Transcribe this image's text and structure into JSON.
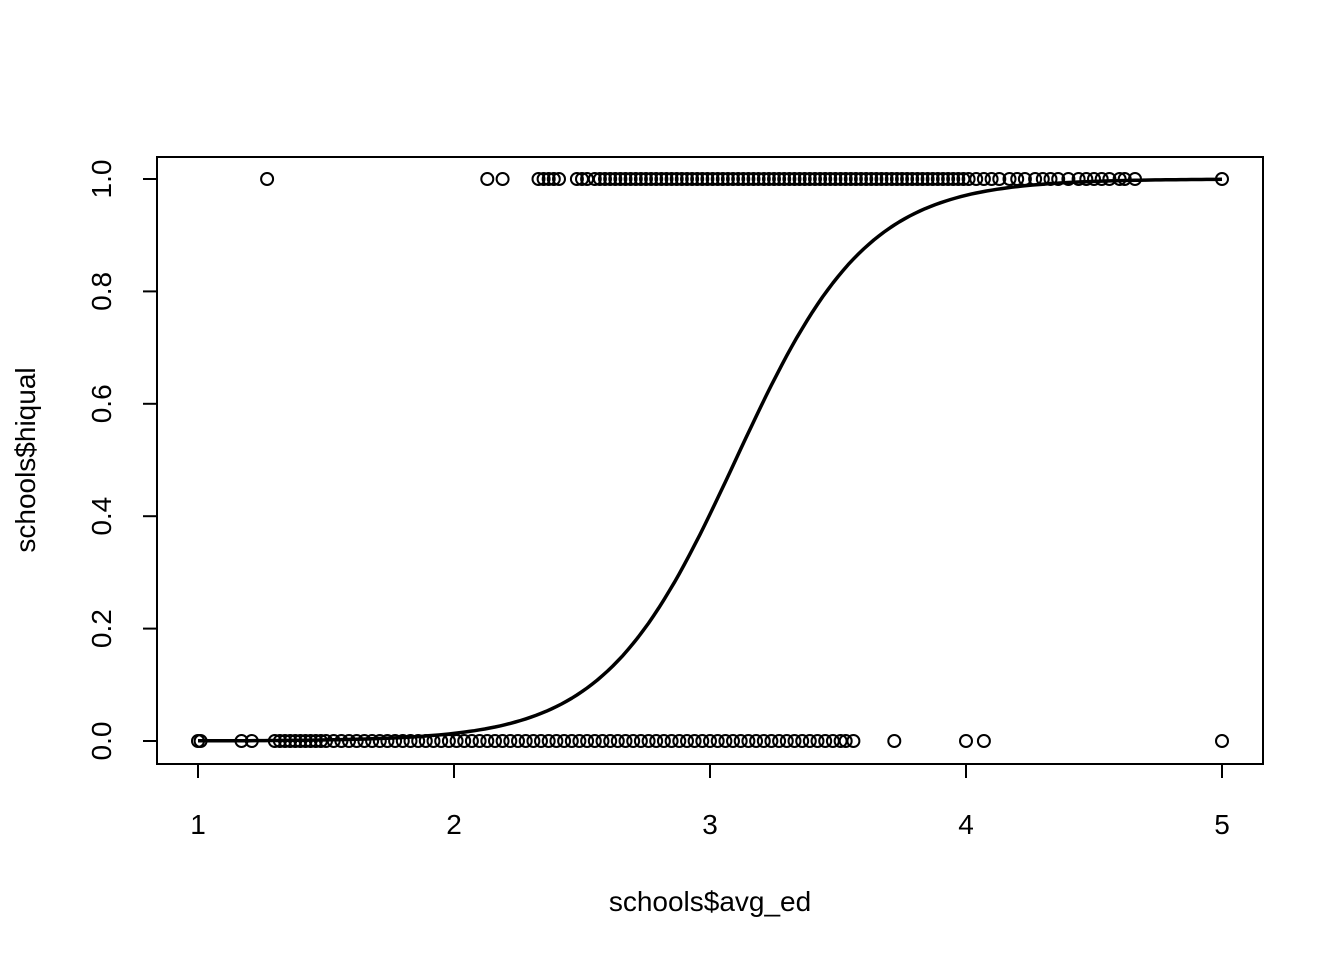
{
  "chart_data": {
    "type": "scatter",
    "xlabel": "schools$avg_ed",
    "ylabel": "schools$hiqual",
    "xlim": [
      1,
      5
    ],
    "ylim": [
      0,
      1
    ],
    "x_ticks": [
      1,
      2,
      3,
      4,
      5
    ],
    "x_tick_labels": [
      "1",
      "2",
      "3",
      "4",
      "5"
    ],
    "y_ticks": [
      0,
      0.2,
      0.4,
      0.6,
      0.8,
      1.0
    ],
    "y_tick_labels": [
      "0.0",
      "0.2",
      "0.4",
      "0.6",
      "0.8",
      "1.0"
    ],
    "grid": false,
    "series": [
      {
        "y": 1,
        "x": [
          1.27,
          2.13,
          2.19,
          2.33,
          2.35,
          2.37,
          2.39,
          2.41,
          2.48,
          2.5,
          2.52,
          2.55,
          2.57,
          2.59,
          2.61,
          2.63,
          2.65,
          2.67,
          2.69,
          2.71,
          2.73,
          2.75,
          2.77,
          2.79,
          2.81,
          2.83,
          2.85,
          2.87,
          2.89,
          2.91,
          2.93,
          2.95,
          2.97,
          2.99,
          3.01,
          3.03,
          3.05,
          3.07,
          3.09,
          3.11,
          3.13,
          3.15,
          3.17,
          3.19,
          3.21,
          3.23,
          3.25,
          3.27,
          3.29,
          3.31,
          3.33,
          3.35,
          3.37,
          3.39,
          3.41,
          3.43,
          3.45,
          3.47,
          3.49,
          3.51,
          3.53,
          3.55,
          3.57,
          3.59,
          3.61,
          3.63,
          3.65,
          3.67,
          3.69,
          3.71,
          3.73,
          3.75,
          3.77,
          3.79,
          3.81,
          3.83,
          3.85,
          3.87,
          3.89,
          3.91,
          3.93,
          3.95,
          3.97,
          3.99,
          4.01,
          4.04,
          4.07,
          4.1,
          4.13,
          4.17,
          4.2,
          4.23,
          4.27,
          4.3,
          4.33,
          4.36,
          4.4,
          4.44,
          4.47,
          4.5,
          4.53,
          4.56,
          4.6,
          4.62,
          4.66,
          5.0
        ]
      },
      {
        "y": 0,
        "x": [
          1.0,
          1.01,
          1.17,
          1.21,
          1.3,
          1.32,
          1.34,
          1.36,
          1.38,
          1.4,
          1.42,
          1.44,
          1.46,
          1.48,
          1.5,
          1.53,
          1.56,
          1.59,
          1.62,
          1.65,
          1.68,
          1.71,
          1.74,
          1.77,
          1.8,
          1.83,
          1.86,
          1.89,
          1.92,
          1.95,
          1.98,
          2.01,
          2.04,
          2.07,
          2.1,
          2.13,
          2.16,
          2.19,
          2.22,
          2.25,
          2.28,
          2.31,
          2.34,
          2.37,
          2.4,
          2.43,
          2.46,
          2.49,
          2.52,
          2.55,
          2.58,
          2.61,
          2.64,
          2.67,
          2.7,
          2.73,
          2.76,
          2.79,
          2.82,
          2.85,
          2.88,
          2.91,
          2.94,
          2.97,
          3.0,
          3.03,
          3.06,
          3.09,
          3.12,
          3.15,
          3.18,
          3.21,
          3.24,
          3.27,
          3.3,
          3.33,
          3.36,
          3.39,
          3.42,
          3.45,
          3.48,
          3.51,
          3.53,
          3.56,
          3.72,
          4.0,
          4.07,
          5.0
        ]
      }
    ],
    "fitted_curve": {
      "type": "logistic",
      "midpoint": 3.1,
      "slope": 3.9,
      "x_range": [
        1,
        5
      ]
    }
  }
}
